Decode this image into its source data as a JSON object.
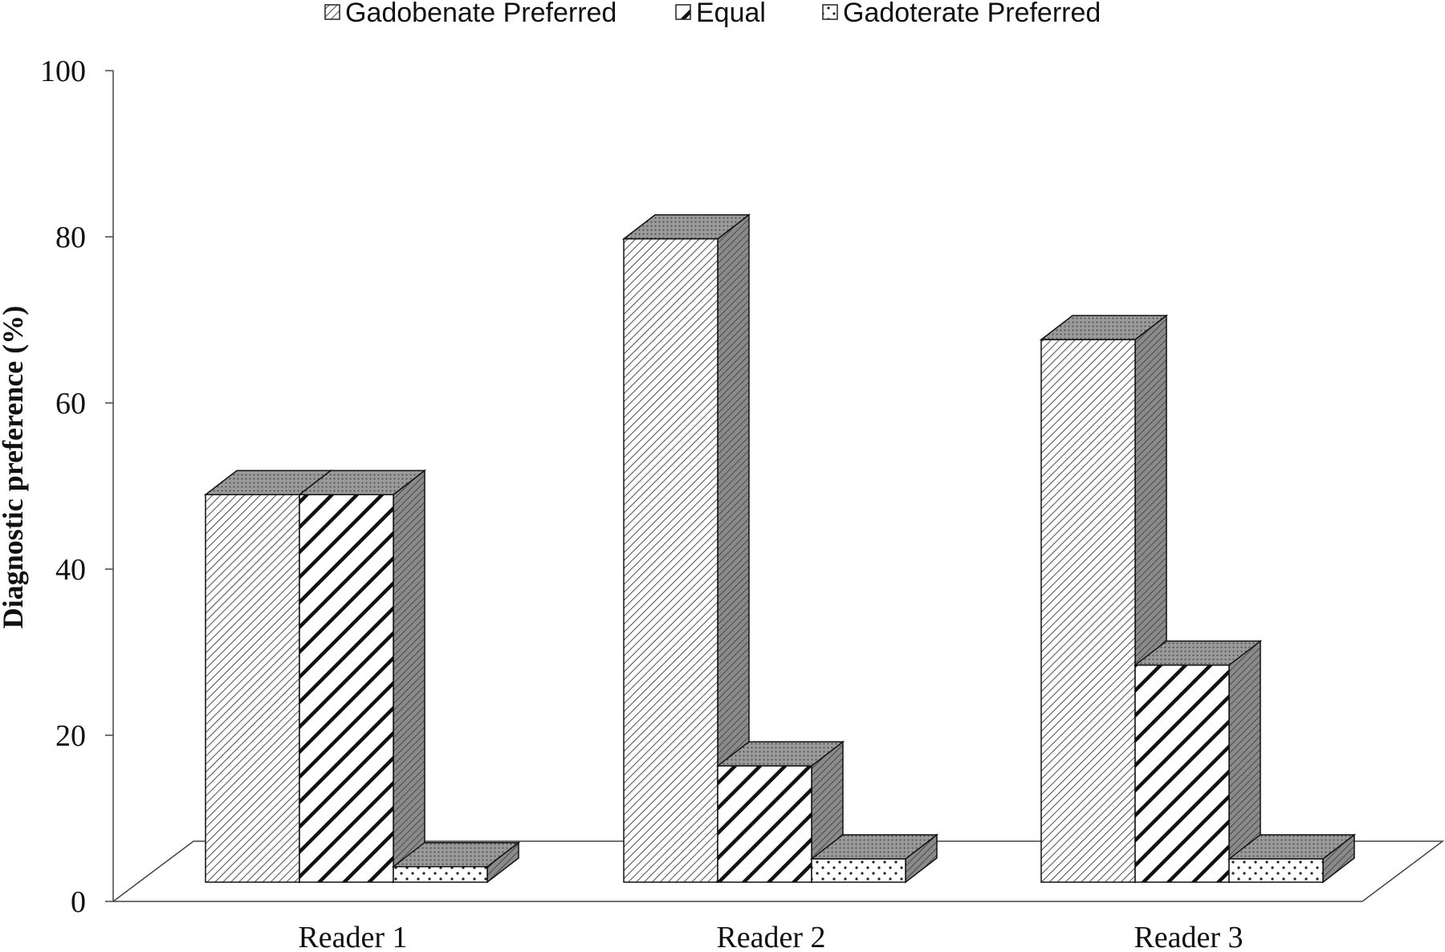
{
  "chart_data": {
    "type": "bar",
    "title": "",
    "xlabel": "",
    "ylabel": "Diagnostic preference (%)",
    "ylim": [
      0,
      100
    ],
    "yticks": [
      "0",
      "20",
      "40",
      "60",
      "80",
      "100"
    ],
    "categories": [
      "Reader 1",
      "Reader 2",
      "Reader 3"
    ],
    "series": [
      {
        "name": "Gadobenate Preferred",
        "values": [
          50,
          83,
          70
        ],
        "pattern": "fine-hatch"
      },
      {
        "name": "Equal",
        "values": [
          50,
          15,
          28
        ],
        "pattern": "bold-hatch"
      },
      {
        "name": "Gadoterate Preferred",
        "values": [
          2,
          3,
          3
        ],
        "pattern": "dots"
      }
    ],
    "legend_position": "top",
    "grid": false,
    "style": "3d-clustered-column",
    "colors": {
      "side_face": "#7a7a7a",
      "top_face": "#8a8a8a",
      "front_bg": "#ffffff",
      "stroke": "#111111"
    }
  }
}
